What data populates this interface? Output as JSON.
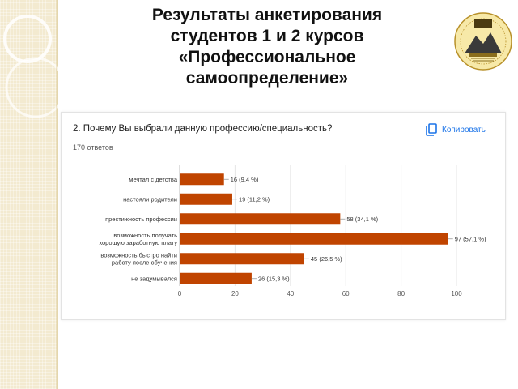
{
  "slide": {
    "title_lines": [
      "Результаты анкетирования",
      "студентов 1 и 2 курсов",
      "«Профессиональное",
      "самоопределение»"
    ]
  },
  "form": {
    "question": "2. Почему Вы выбрали данную профессию/специальность?",
    "responses": "170 ответов",
    "copy_label": "Копировать",
    "copy_icon": "copy-icon"
  },
  "colors": {
    "bar": "#c04400",
    "accent": "#1a73e8"
  },
  "chart_data": {
    "type": "bar",
    "orientation": "horizontal",
    "categories": [
      [
        "мечтал с детства"
      ],
      [
        "настояли родители"
      ],
      [
        "престижность профессии"
      ],
      [
        "возможность получать",
        "хорошую заработную плату"
      ],
      [
        "возможность быстро найти",
        "работу после обучения"
      ],
      [
        "не задумывался"
      ]
    ],
    "values": [
      16,
      19,
      58,
      97,
      45,
      26
    ],
    "data_labels": [
      "16 (9,4 %)",
      "19 (11,2 %)",
      "58 (34,1 %)",
      "97 (57,1 %)",
      "45 (26,5 %)",
      "26 (15,3 %)"
    ],
    "xlim": [
      0,
      100
    ],
    "xticks": [
      0,
      20,
      40,
      60,
      80,
      100
    ],
    "grid": true,
    "title": "",
    "xlabel": "",
    "ylabel": ""
  }
}
